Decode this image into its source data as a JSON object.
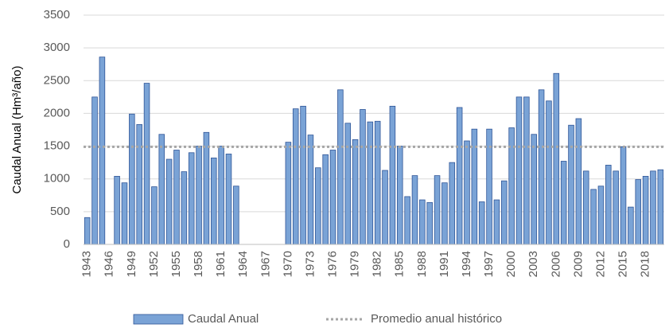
{
  "chart_data": {
    "type": "bar",
    "y_label": "Caudal Anual (Hm³/año)",
    "categories": [
      "1943",
      null,
      null,
      "1946",
      null,
      null,
      "1949",
      null,
      null,
      "1952",
      null,
      null,
      "1955",
      null,
      null,
      "1958",
      null,
      null,
      "1961",
      null,
      null,
      "1964",
      null,
      null,
      "1967",
      null,
      null,
      "1970",
      null,
      null,
      "1973",
      null,
      null,
      "1976",
      null,
      null,
      "1979",
      null,
      null,
      "1982",
      null,
      null,
      "1985",
      null,
      null,
      "1988",
      null,
      null,
      "1991",
      null,
      null,
      "1994",
      null,
      null,
      "1997",
      null,
      null,
      "2000",
      null,
      null,
      "2003",
      null,
      null,
      "2006",
      null,
      null,
      "2009",
      null,
      null,
      "2012",
      null,
      null,
      "2015",
      null,
      null,
      "2018",
      null,
      null
    ],
    "series": [
      {
        "name": "Caudal Anual",
        "color": "#7aa3d6",
        "values": [
          410,
          2250,
          2860,
          null,
          1040,
          940,
          1990,
          1830,
          2460,
          880,
          1680,
          1300,
          1440,
          1110,
          1400,
          1500,
          1710,
          1320,
          1500,
          1380,
          890,
          null,
          null,
          null,
          null,
          null,
          null,
          1560,
          2070,
          2110,
          1670,
          1170,
          1370,
          1440,
          2360,
          1850,
          1600,
          2060,
          1870,
          1880,
          1130,
          2110,
          1500,
          730,
          1050,
          680,
          640,
          1050,
          940,
          1250,
          2090,
          1580,
          1760,
          650,
          1760,
          680,
          970,
          1780,
          2250,
          2250,
          1680,
          2360,
          2190,
          2610,
          1270,
          1820,
          1920,
          1120,
          840,
          890,
          1210,
          1120,
          1490,
          570,
          990,
          1040,
          1120,
          1140
        ]
      }
    ],
    "reference_line": {
      "name": "Promedio anual histórico",
      "value": 1490,
      "color": "#a6a6a6"
    },
    "ylim": [
      0,
      3500
    ],
    "yticks": [
      0,
      500,
      1000,
      1500,
      2000,
      2500,
      3000,
      3500
    ],
    "grid": true,
    "legend": "bottom"
  }
}
